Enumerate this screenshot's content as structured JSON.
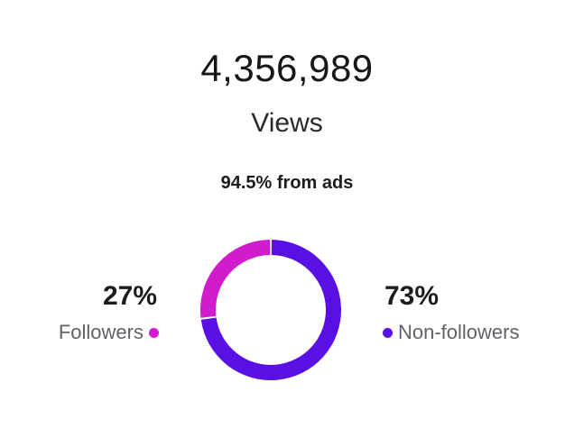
{
  "summary": {
    "total": "4,356,989",
    "metric": "Views",
    "ads_note": "94.5% from ads"
  },
  "colors": {
    "followers": "#d21bcd",
    "non_followers": "#5a0fe3"
  },
  "chart_data": {
    "type": "pie",
    "categories": [
      "Followers",
      "Non-followers"
    ],
    "values": [
      27,
      73
    ],
    "labels": [
      "27%",
      "73%"
    ]
  }
}
